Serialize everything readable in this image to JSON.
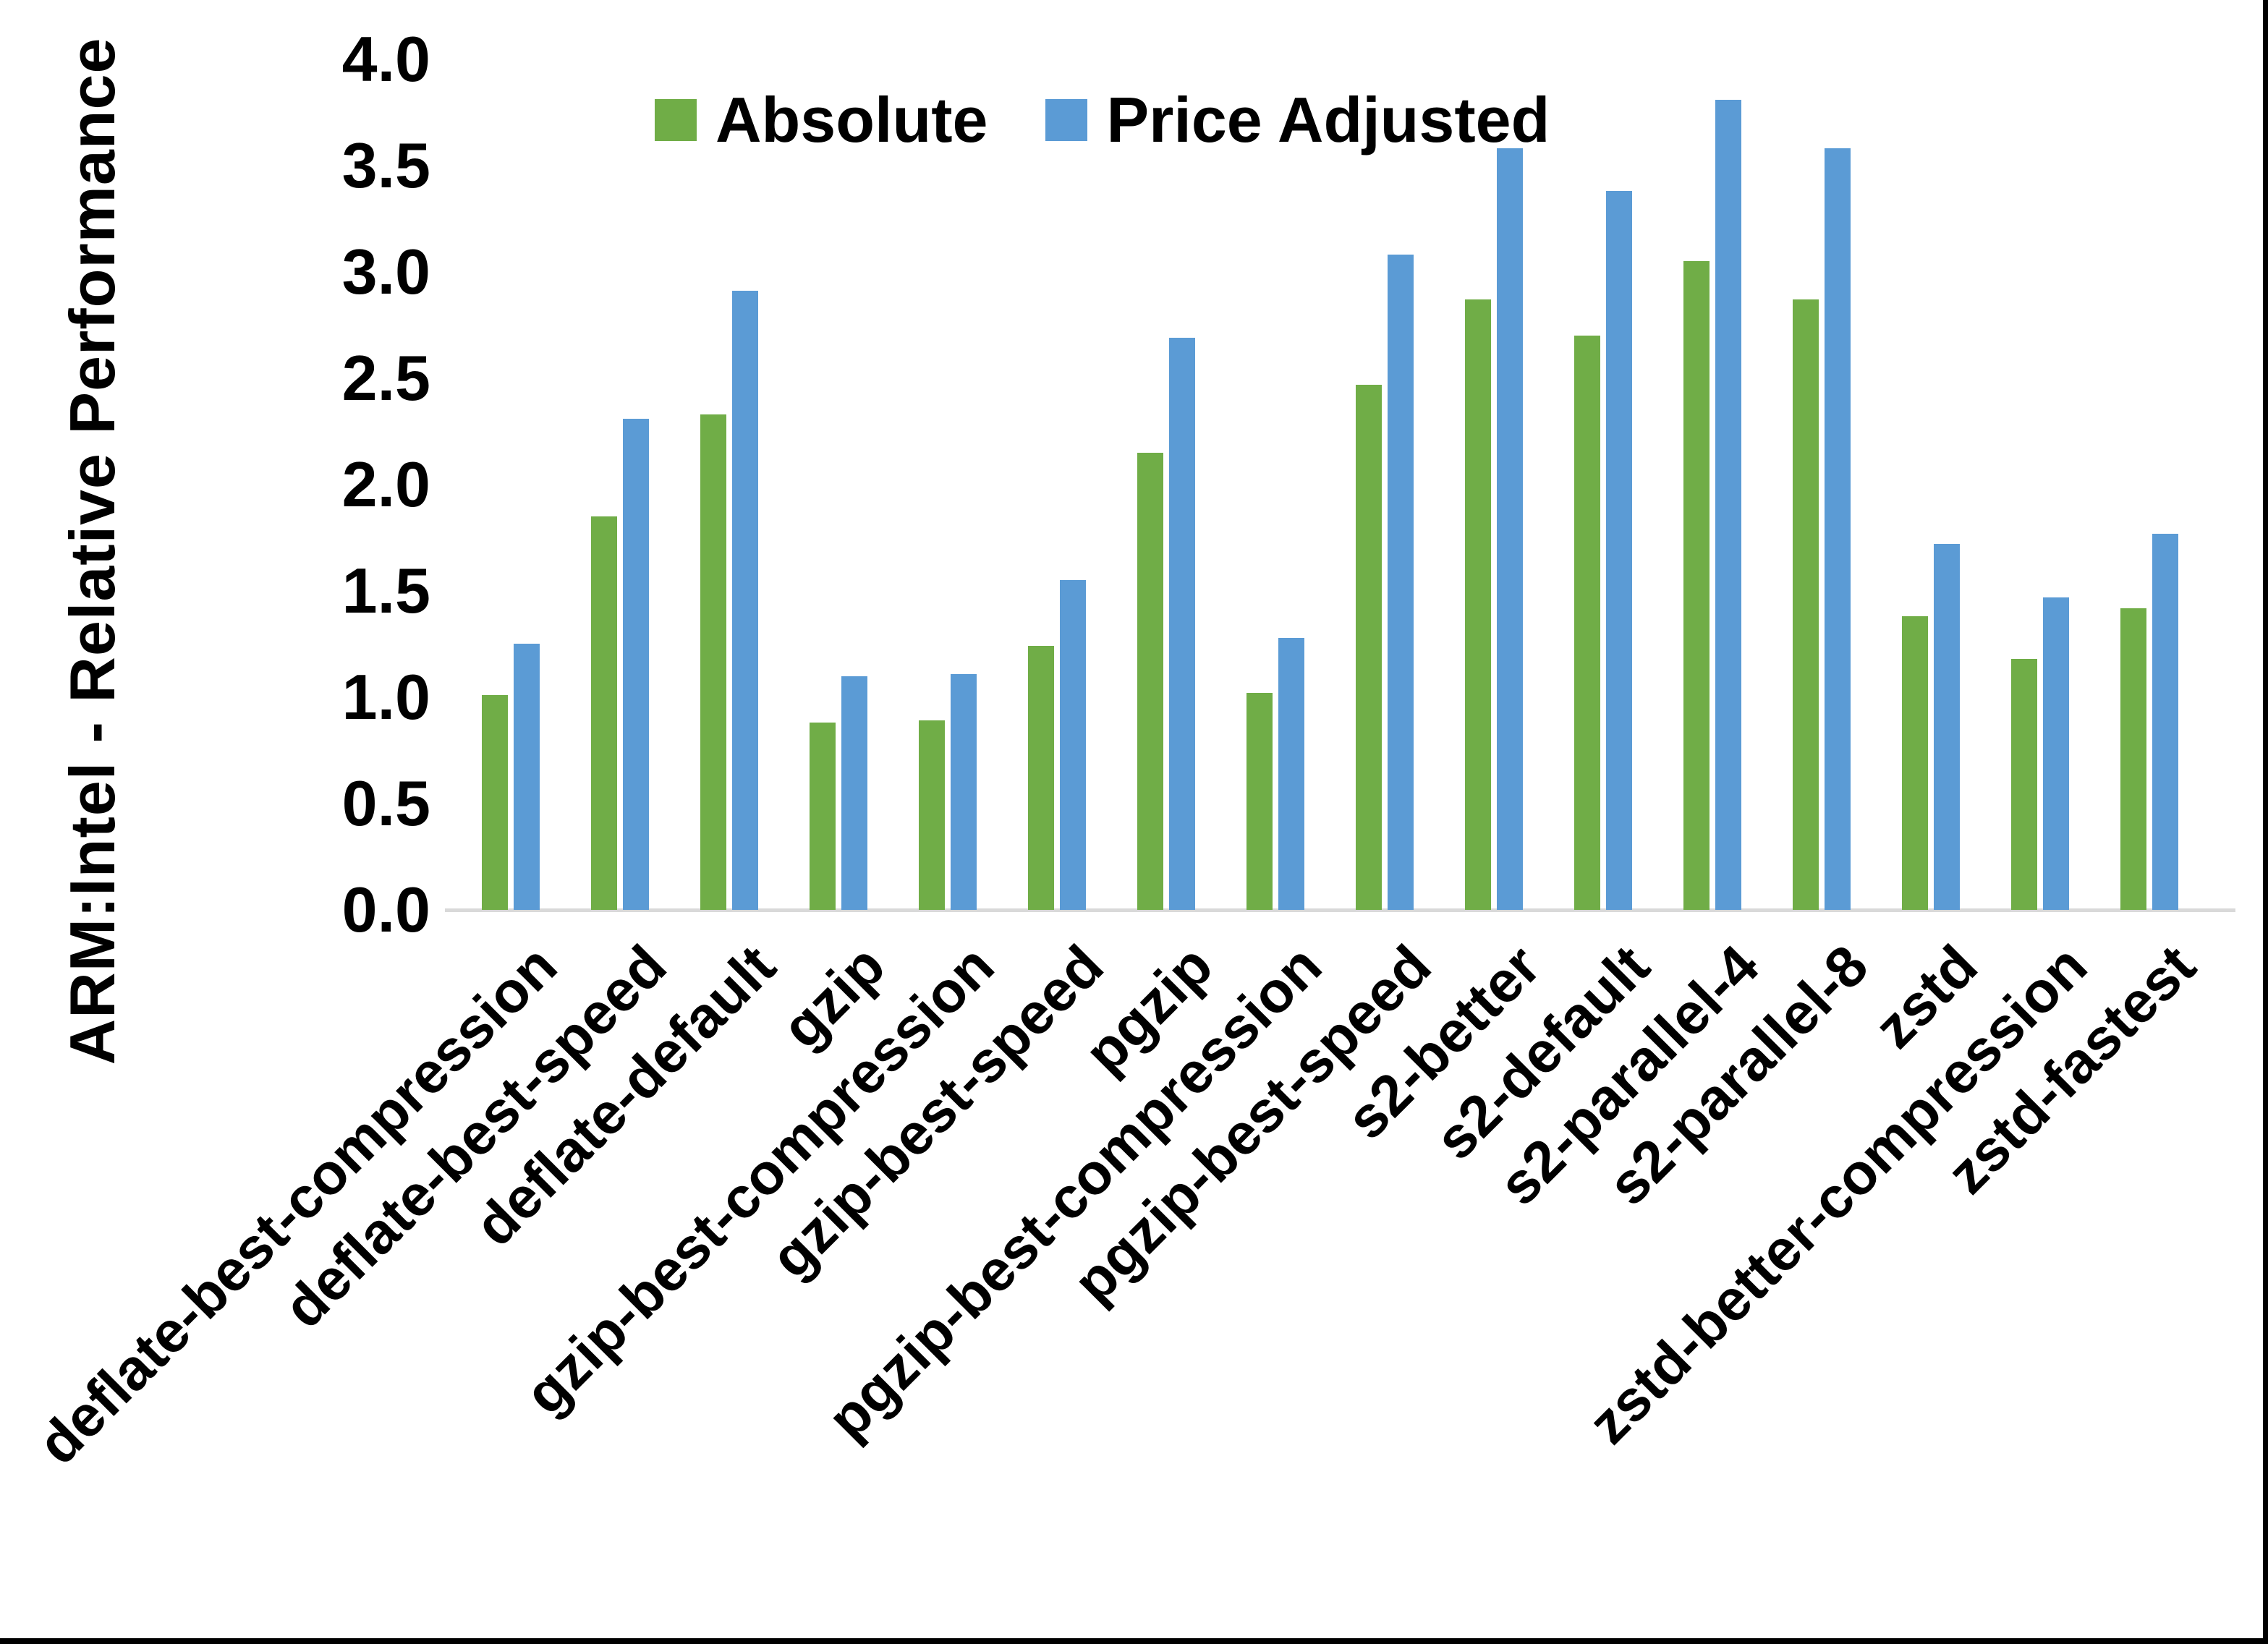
{
  "chart_data": {
    "type": "bar",
    "title": "",
    "ylabel": "ARM:Intel - Relative Performance",
    "xlabel": "",
    "ylim": [
      0.0,
      4.0
    ],
    "ytick_step": 0.5,
    "yticks": [
      0.0,
      0.5,
      1.0,
      1.5,
      2.0,
      2.5,
      3.0,
      3.5,
      4.0
    ],
    "grid": false,
    "legend_position": "top-center",
    "categories": [
      "deflate-best-compression",
      "deflate-best-speed",
      "deflate-default",
      "gzip",
      "gzip-best-compression",
      "gzip-best-speed",
      "pgzip",
      "pgzip-best-compression",
      "pgzip-best-speed",
      "s2-better",
      "s2-default",
      "s2-parallel-4",
      "s2-parallel-8",
      "zstd",
      "zstd-better-compression",
      "zstd-fastest"
    ],
    "series": [
      {
        "name": "Absolute",
        "color": "#70AD47",
        "values": [
          1.01,
          1.85,
          2.33,
          0.88,
          0.89,
          1.24,
          2.15,
          1.02,
          2.47,
          2.87,
          2.7,
          3.05,
          2.87,
          1.38,
          1.18,
          1.42
        ]
      },
      {
        "name": "Price Adjusted",
        "color": "#5B9BD5",
        "values": [
          1.25,
          2.31,
          2.91,
          1.1,
          1.11,
          1.55,
          2.69,
          1.28,
          3.08,
          3.58,
          3.38,
          3.81,
          3.58,
          1.72,
          1.47,
          1.77
        ]
      }
    ]
  },
  "colors": {
    "background": "#FFFFFF",
    "axis_line": "#D9D9D9",
    "text": "#000000",
    "border": "#000000"
  }
}
